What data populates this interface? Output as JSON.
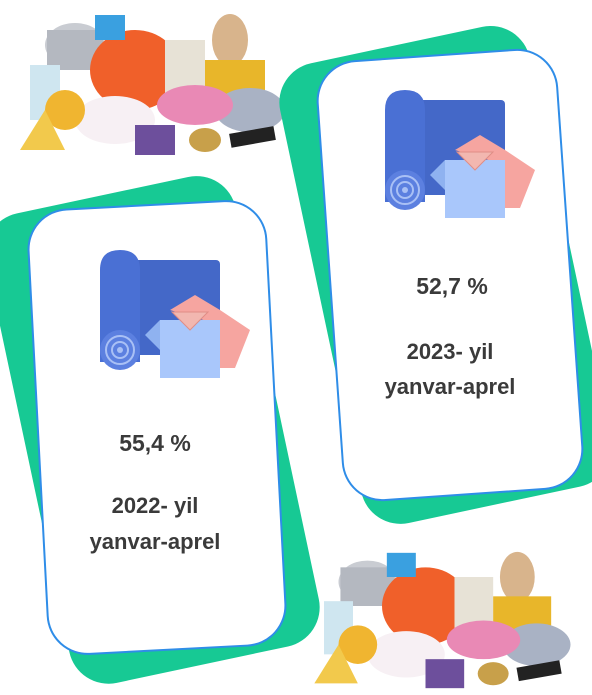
{
  "cards": [
    {
      "value": "55,4 %",
      "period": [
        "2022- yil",
        "yanvar-aprel"
      ]
    },
    {
      "value": "52,7 %",
      "period": [
        "2023- yil",
        "yanvar-aprel"
      ]
    }
  ]
}
